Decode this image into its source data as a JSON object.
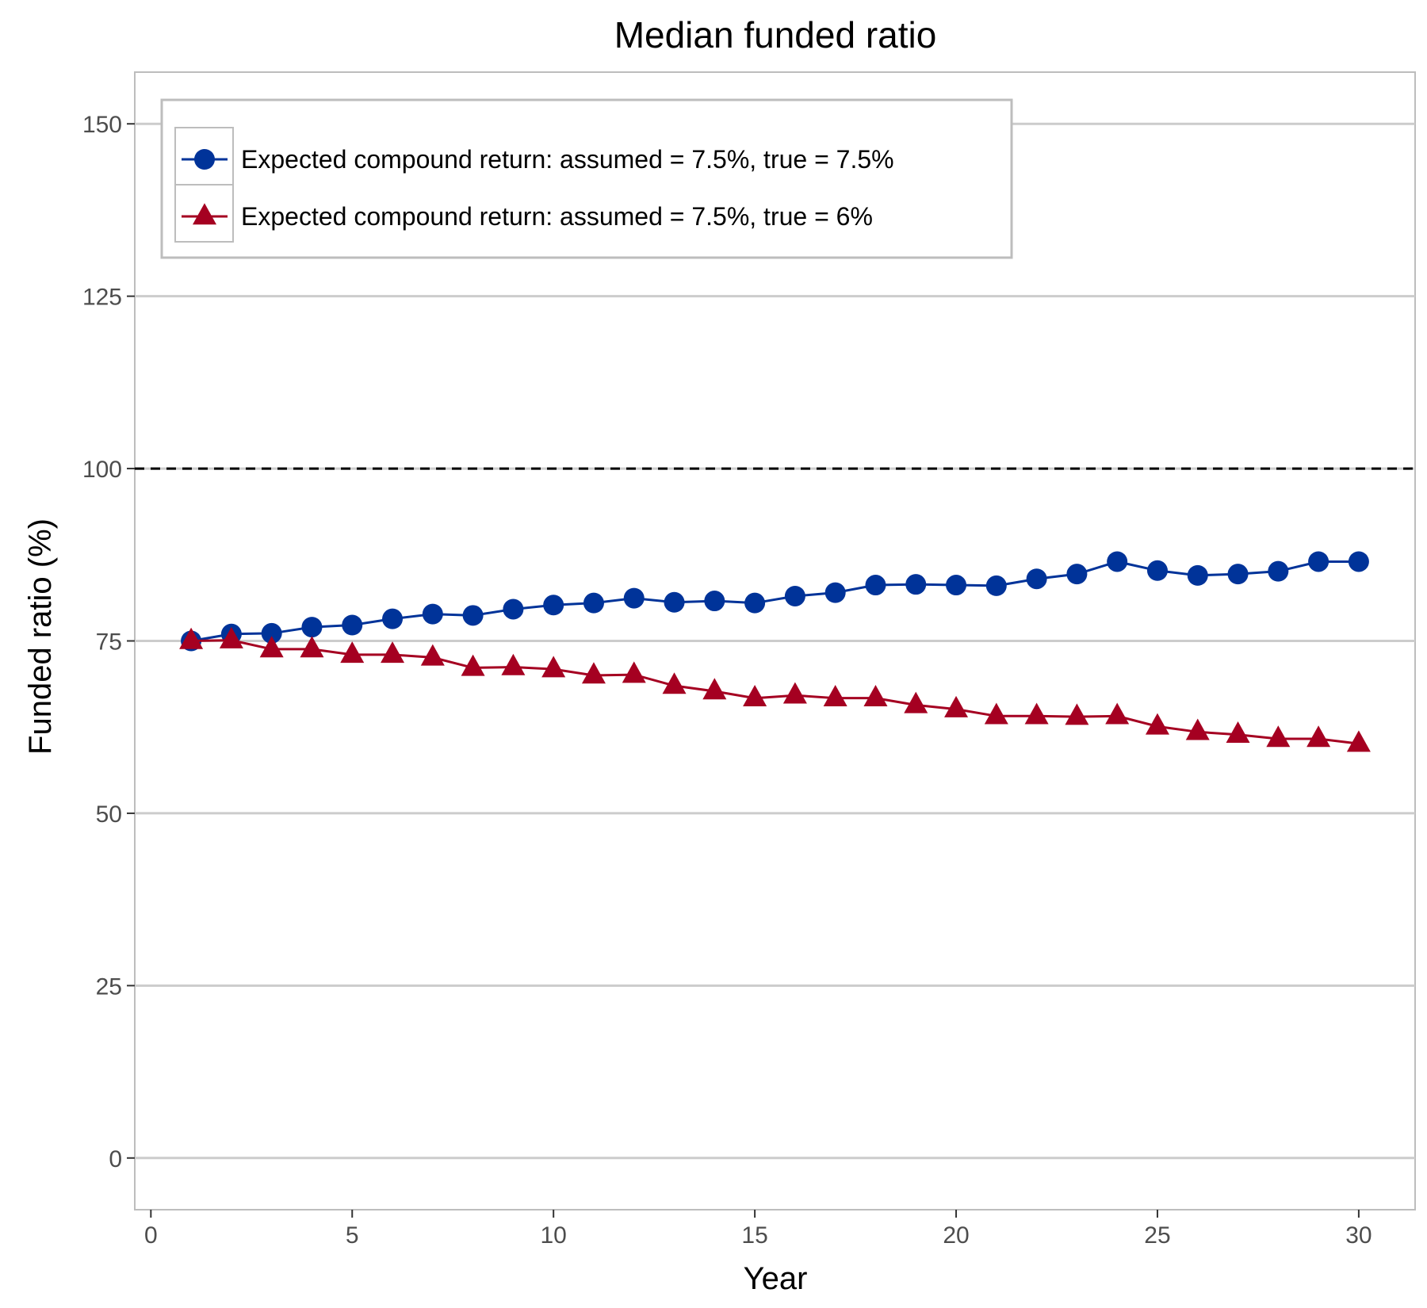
{
  "chart_data": {
    "type": "line",
    "title": "Median funded ratio",
    "xlabel": "Year",
    "ylabel": "Funded ratio (%)",
    "xlim": [
      -0.4,
      31.4
    ],
    "ylim": [
      -7.5,
      157.5
    ],
    "x_ticks": [
      0,
      5,
      10,
      15,
      20,
      25,
      30
    ],
    "y_ticks": [
      0,
      25,
      50,
      75,
      100,
      125,
      150
    ],
    "x_tick_labels": [
      "0",
      "5",
      "10",
      "15",
      "20",
      "25",
      "30"
    ],
    "y_tick_labels": [
      "0",
      "25",
      "50",
      "75",
      "100",
      "125",
      "150"
    ],
    "grid": "horizontal",
    "reference_line": {
      "y": 100,
      "style": "dashed",
      "color": "#000000"
    },
    "legend_position": "top-left",
    "x": [
      1,
      2,
      3,
      4,
      5,
      6,
      7,
      8,
      9,
      10,
      11,
      12,
      13,
      14,
      15,
      16,
      17,
      18,
      19,
      20,
      21,
      22,
      23,
      24,
      25,
      26,
      27,
      28,
      29,
      30
    ],
    "series": [
      {
        "name": "Expected compound return: assumed = 7.5%, true = 7.5%",
        "marker": "circle",
        "color": "#003399",
        "values": [
          75.0,
          76.0,
          76.1,
          77.0,
          77.3,
          78.2,
          78.9,
          78.7,
          79.6,
          80.2,
          80.5,
          81.2,
          80.6,
          80.8,
          80.5,
          81.5,
          82.0,
          83.1,
          83.2,
          83.1,
          83.0,
          84.0,
          84.7,
          86.5,
          85.2,
          84.5,
          84.7,
          85.1,
          86.5,
          86.5
        ]
      },
      {
        "name": "Expected compound return: assumed = 7.5%, true = 6%",
        "marker": "triangle",
        "color": "#a50021",
        "values": [
          75.0,
          75.1,
          73.8,
          73.8,
          73.0,
          73.0,
          72.6,
          71.1,
          71.2,
          70.9,
          70.0,
          70.1,
          68.5,
          67.7,
          66.7,
          67.1,
          66.7,
          66.7,
          65.7,
          65.1,
          64.1,
          64.1,
          64.0,
          64.1,
          62.6,
          61.8,
          61.4,
          60.8,
          60.8,
          60.1
        ]
      }
    ]
  }
}
